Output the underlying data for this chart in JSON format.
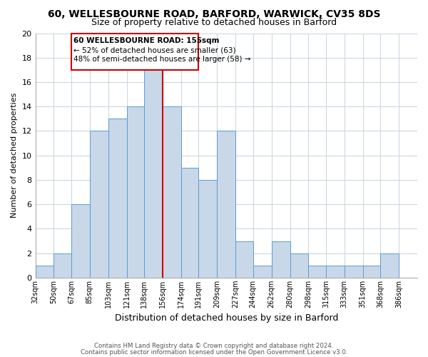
{
  "title": "60, WELLESBOURNE ROAD, BARFORD, WARWICK, CV35 8DS",
  "subtitle": "Size of property relative to detached houses in Barford",
  "xlabel": "Distribution of detached houses by size in Barford",
  "ylabel": "Number of detached properties",
  "bin_labels": [
    "32sqm",
    "50sqm",
    "67sqm",
    "85sqm",
    "103sqm",
    "121sqm",
    "138sqm",
    "156sqm",
    "174sqm",
    "191sqm",
    "209sqm",
    "227sqm",
    "244sqm",
    "262sqm",
    "280sqm",
    "298sqm",
    "315sqm",
    "333sqm",
    "351sqm",
    "368sqm",
    "386sqm"
  ],
  "bin_edges": [
    32,
    50,
    67,
    85,
    103,
    121,
    138,
    156,
    174,
    191,
    209,
    227,
    244,
    262,
    280,
    298,
    315,
    333,
    351,
    368,
    386
  ],
  "counts": [
    1,
    2,
    6,
    12,
    13,
    14,
    17,
    14,
    9,
    8,
    12,
    3,
    1,
    3,
    2,
    1,
    1,
    1,
    1,
    2,
    0
  ],
  "bar_color": "#c8d8e8",
  "bar_edge_color": "#5b9bd5",
  "marker_color": "#cc0000",
  "ylim": [
    0,
    20
  ],
  "yticks": [
    0,
    2,
    4,
    6,
    8,
    10,
    12,
    14,
    16,
    18,
    20
  ],
  "annotation_title": "60 WELLESBOURNE ROAD: 155sqm",
  "annotation_line1": "← 52% of detached houses are smaller (63)",
  "annotation_line2": "48% of semi-detached houses are larger (58) →",
  "footer1": "Contains HM Land Registry data © Crown copyright and database right 2024.",
  "footer2": "Contains public sector information licensed under the Open Government Licence v3.0.",
  "bg_color": "#ffffff",
  "grid_color": "#c8d4e0"
}
